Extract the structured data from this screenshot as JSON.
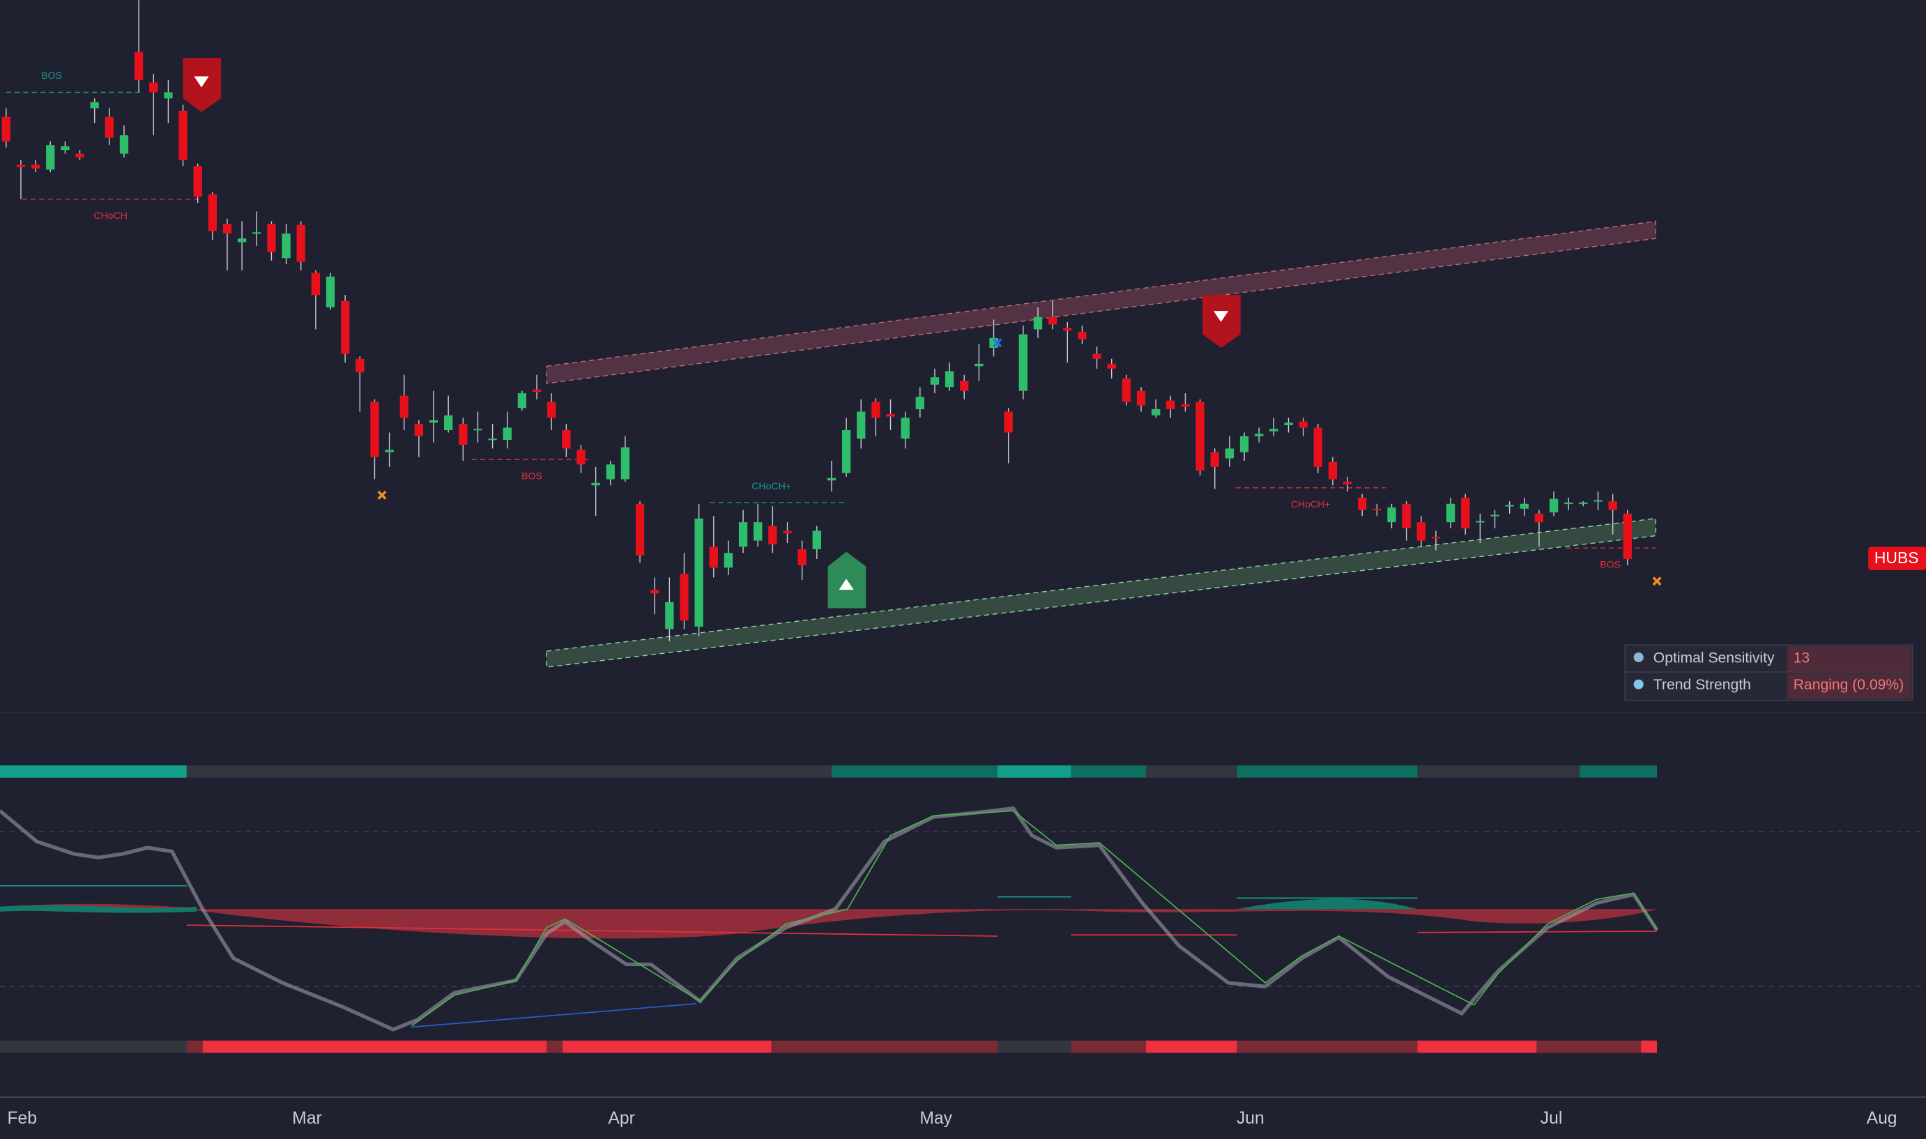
{
  "chart_data": {
    "type": "candlestick",
    "ylim": [
      0,
      580
    ],
    "ohlc": [
      [
        485,
        492,
        460,
        465
      ],
      [
        446,
        450,
        418,
        444
      ],
      [
        446,
        450,
        440,
        443
      ],
      [
        442,
        465,
        440,
        462
      ],
      [
        458,
        465,
        455,
        461
      ],
      [
        455,
        458,
        450,
        452
      ],
      [
        492,
        500,
        480,
        497
      ],
      [
        485,
        492,
        462,
        468
      ],
      [
        455,
        478,
        452,
        470
      ],
      [
        538,
        580,
        505,
        515
      ],
      [
        513,
        520,
        470,
        505
      ],
      [
        500,
        515,
        480,
        505
      ],
      [
        490,
        495,
        445,
        450
      ],
      [
        445,
        447,
        415,
        420
      ],
      [
        422,
        424,
        385,
        392
      ],
      [
        398,
        402,
        360,
        390
      ],
      [
        383,
        400,
        360,
        386
      ],
      [
        390,
        408,
        380,
        391
      ],
      [
        398,
        400,
        368,
        375
      ],
      [
        370,
        398,
        365,
        390
      ],
      [
        397,
        400,
        360,
        367
      ],
      [
        358,
        360,
        312,
        340
      ],
      [
        330,
        358,
        328,
        355
      ],
      [
        335,
        340,
        285,
        292
      ],
      [
        288,
        290,
        245,
        277
      ],
      [
        253,
        255,
        190,
        208
      ],
      [
        212,
        228,
        200,
        214
      ],
      [
        258,
        275,
        230,
        240
      ],
      [
        235,
        238,
        208,
        225
      ],
      [
        236,
        262,
        220,
        238
      ],
      [
        230,
        258,
        228,
        242
      ],
      [
        235,
        240,
        205,
        218
      ],
      [
        230,
        245,
        220,
        231
      ],
      [
        222,
        235,
        215,
        223
      ],
      [
        222,
        245,
        215,
        232
      ],
      [
        248,
        262,
        246,
        260
      ],
      [
        263,
        275,
        255,
        261
      ],
      [
        253,
        260,
        230,
        240
      ],
      [
        230,
        235,
        208,
        215
      ],
      [
        214,
        218,
        195,
        202
      ],
      [
        185,
        200,
        160,
        187
      ],
      [
        190,
        205,
        185,
        202
      ],
      [
        190,
        225,
        188,
        216
      ],
      [
        170,
        172,
        122,
        128
      ],
      [
        100,
        110,
        80,
        97
      ],
      [
        68,
        110,
        58,
        90
      ],
      [
        113,
        130,
        68,
        75
      ],
      [
        70,
        170,
        62,
        158
      ],
      [
        135,
        160,
        110,
        118
      ],
      [
        118,
        140,
        112,
        130
      ],
      [
        135,
        165,
        130,
        155
      ],
      [
        140,
        170,
        135,
        155
      ],
      [
        152,
        168,
        130,
        137
      ],
      [
        148,
        155,
        138,
        146
      ],
      [
        133,
        140,
        108,
        120
      ],
      [
        133,
        152,
        125,
        148
      ],
      [
        189,
        205,
        180,
        191
      ],
      [
        195,
        240,
        192,
        230
      ],
      [
        223,
        255,
        215,
        245
      ],
      [
        253,
        256,
        225,
        240
      ],
      [
        243,
        255,
        230,
        241
      ],
      [
        223,
        245,
        215,
        240
      ],
      [
        247,
        265,
        240,
        257
      ],
      [
        267,
        280,
        260,
        273
      ],
      [
        265,
        285,
        262,
        278
      ],
      [
        270,
        275,
        255,
        262
      ],
      [
        282,
        300,
        270,
        284
      ],
      [
        297,
        320,
        290,
        305
      ],
      [
        245,
        248,
        203,
        228
      ],
      [
        262,
        315,
        255,
        308
      ],
      [
        312,
        330,
        305,
        322
      ],
      [
        322,
        335,
        312,
        316
      ],
      [
        313,
        318,
        285,
        311
      ],
      [
        310,
        315,
        300,
        304
      ],
      [
        292,
        298,
        280,
        288
      ],
      [
        284,
        288,
        272,
        280
      ],
      [
        272,
        275,
        250,
        253
      ],
      [
        262,
        265,
        245,
        250
      ],
      [
        242,
        255,
        240,
        247
      ],
      [
        254,
        258,
        240,
        247
      ],
      [
        251,
        260,
        245,
        249
      ],
      [
        253,
        255,
        193,
        197
      ],
      [
        212,
        215,
        182,
        200
      ],
      [
        207,
        225,
        200,
        215
      ],
      [
        212,
        228,
        205,
        225
      ],
      [
        225,
        232,
        220,
        227
      ],
      [
        229,
        240,
        225,
        231
      ],
      [
        234,
        240,
        228,
        236
      ],
      [
        237,
        240,
        225,
        232
      ],
      [
        232,
        235,
        195,
        200
      ],
      [
        204,
        208,
        185,
        190
      ],
      [
        188,
        192,
        180,
        186
      ],
      [
        175,
        178,
        160,
        165
      ],
      [
        166,
        170,
        160,
        165
      ],
      [
        155,
        170,
        150,
        167
      ],
      [
        170,
        172,
        140,
        150
      ],
      [
        155,
        160,
        135,
        140
      ],
      [
        143,
        148,
        132,
        142
      ],
      [
        155,
        175,
        150,
        170
      ],
      [
        175,
        178,
        145,
        150
      ],
      [
        155,
        162,
        138,
        156
      ],
      [
        160,
        165,
        150,
        161
      ],
      [
        168,
        172,
        162,
        169
      ],
      [
        166,
        175,
        160,
        170
      ],
      [
        162,
        165,
        135,
        155
      ],
      [
        163,
        180,
        160,
        174
      ],
      [
        170,
        175,
        165,
        171
      ],
      [
        170,
        172,
        168,
        171
      ],
      [
        172,
        180,
        165,
        173
      ],
      [
        172,
        178,
        145,
        165
      ],
      [
        162,
        165,
        120,
        125
      ]
    ],
    "up_color": "#2ebd6b",
    "down_color": "#e8101a",
    "annotations": [
      "BOS",
      "CHoCH",
      "BOS",
      "CHoCH+",
      "CHoCH+",
      "BOS"
    ],
    "symbol": "HUBS",
    "xlabels": [
      "Feb",
      "Mar",
      "Apr",
      "May",
      "Jun",
      "Jul",
      "Aug"
    ]
  },
  "panel": {
    "rows": [
      [
        "Optimal Sensitivity",
        "13"
      ],
      [
        "Trend Strength",
        "Ranging (0.09%)"
      ]
    ]
  }
}
